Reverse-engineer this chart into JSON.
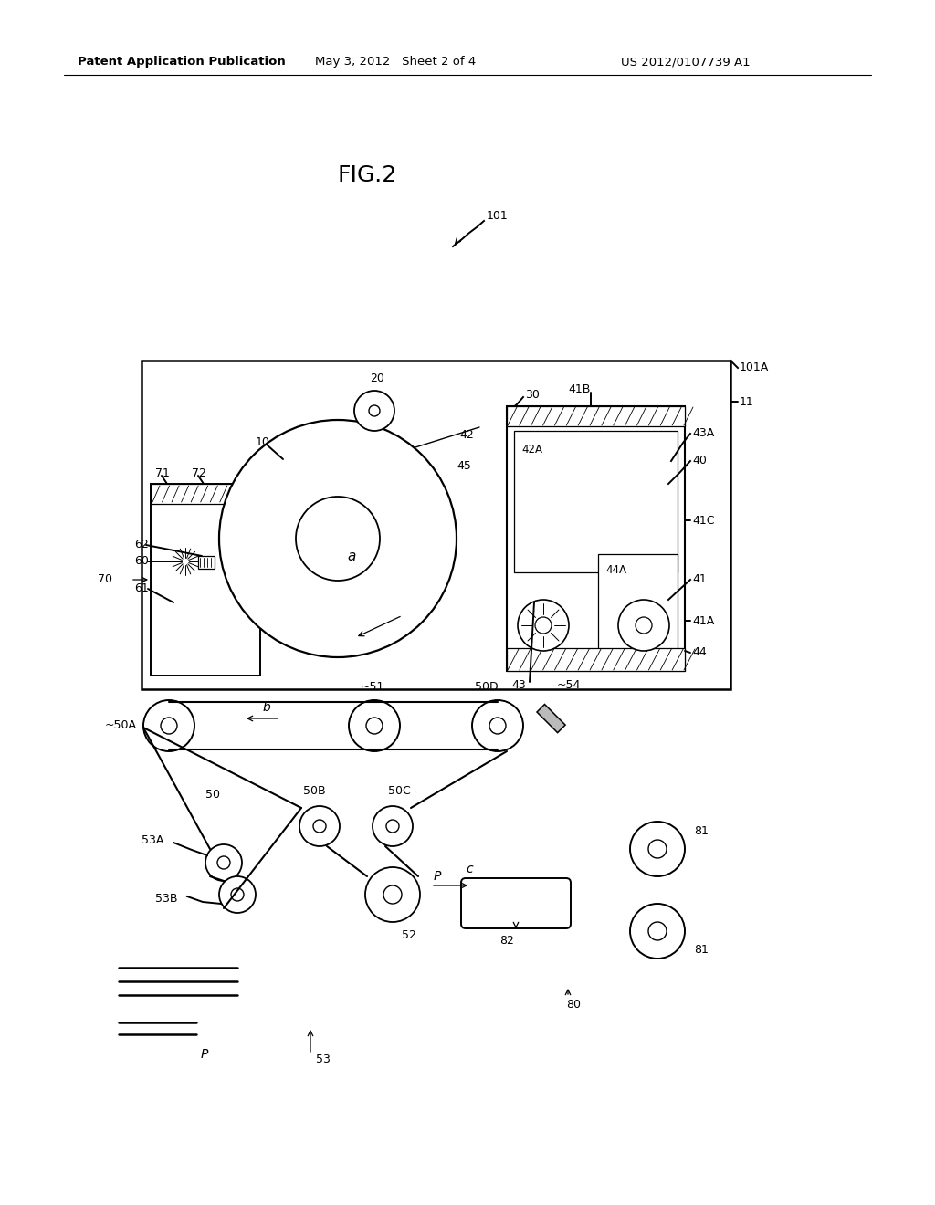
{
  "header_left": "Patent Application Publication",
  "header_mid": "May 3, 2012   Sheet 2 of 4",
  "header_right": "US 2012/0107739 A1",
  "bg_color": "#ffffff",
  "fig_label": "FIG.2"
}
